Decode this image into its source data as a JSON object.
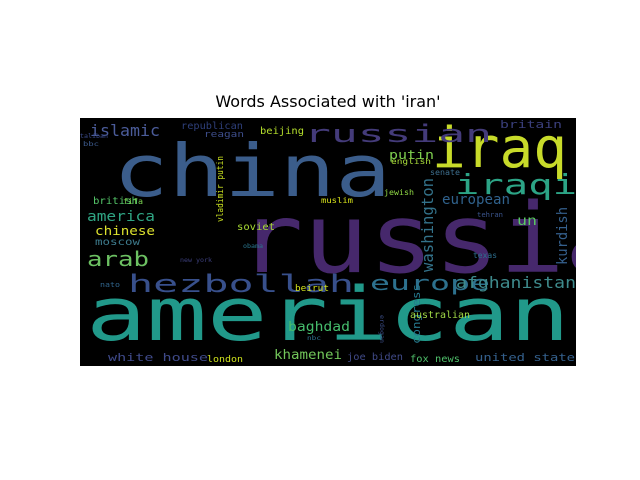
{
  "chart_data": {
    "type": "wordcloud",
    "title": "Words Associated with 'iran'",
    "background": "#000000",
    "colormap": "viridis",
    "words": [
      {
        "text": "russia",
        "color": "#46286c"
      },
      {
        "text": "american",
        "color": "#21998a"
      },
      {
        "text": "china",
        "color": "#3b5d8b"
      },
      {
        "text": "iraq",
        "color": "#c8db2a"
      },
      {
        "text": "hezbollah",
        "color": "#38508c"
      },
      {
        "text": "russian",
        "color": "#443b7a"
      },
      {
        "text": "iraqi",
        "color": "#2ca486"
      },
      {
        "text": "arab",
        "color": "#6cc062"
      },
      {
        "text": "europe",
        "color": "#2d718e"
      },
      {
        "text": "afghanistan",
        "color": "#3e8a8c"
      },
      {
        "text": "washington",
        "color": "#33728a"
      },
      {
        "text": "islamic",
        "color": "#4b5c9a"
      },
      {
        "text": "america",
        "color": "#2fa483"
      },
      {
        "text": "kurdish",
        "color": "#35608d"
      },
      {
        "text": "european",
        "color": "#30628d"
      },
      {
        "text": "baghdad",
        "color": "#46bd6d"
      },
      {
        "text": "khamenei",
        "color": "#72c65a"
      },
      {
        "text": "white house",
        "color": "#3f4a8a"
      },
      {
        "text": "united state",
        "color": "#34608d"
      },
      {
        "text": "putin",
        "color": "#7fd04f"
      },
      {
        "text": "chinese",
        "color": "#dde22e"
      },
      {
        "text": "britain",
        "color": "#3a3f7c"
      },
      {
        "text": "congress",
        "color": "#26798e"
      },
      {
        "text": "australian",
        "color": "#a0d846"
      },
      {
        "text": "fox news",
        "color": "#4fbf6a"
      },
      {
        "text": "un",
        "color": "#5bc863"
      },
      {
        "text": "british",
        "color": "#54c468"
      },
      {
        "text": "moscow",
        "color": "#3e7c8e"
      },
      {
        "text": "soviet",
        "color": "#a8db34"
      },
      {
        "text": "beijing",
        "color": "#b4de2c"
      },
      {
        "text": "republican",
        "color": "#2e3f7a"
      },
      {
        "text": "reagan",
        "color": "#3d4d8a"
      },
      {
        "text": "joe biden",
        "color": "#404a88"
      },
      {
        "text": "london",
        "color": "#cde11d"
      },
      {
        "text": "vladimir putin",
        "color": "#c9e020"
      },
      {
        "text": "beirut",
        "color": "#d2e21b"
      },
      {
        "text": "english",
        "color": "#a9dc3a"
      },
      {
        "text": "jewish",
        "color": "#8fd744"
      },
      {
        "text": "muslim",
        "color": "#d7e219"
      },
      {
        "text": "senate",
        "color": "#3e6f8e"
      },
      {
        "text": "fifa",
        "color": "#7ad151"
      },
      {
        "text": "texas",
        "color": "#2d6f8e"
      },
      {
        "text": "tehran",
        "color": "#3a548c"
      },
      {
        "text": "nato",
        "color": "#31668e"
      },
      {
        "text": "obama",
        "color": "#2a768e"
      },
      {
        "text": "new york",
        "color": "#3c3f7c"
      },
      {
        "text": "taliban",
        "color": "#3a4a8a"
      },
      {
        "text": "bbc",
        "color": "#3c5a8c"
      },
      {
        "text": "nbc",
        "color": "#2e6f8e"
      },
      {
        "text": "erdogan",
        "color": "#3b4d86"
      }
    ]
  }
}
